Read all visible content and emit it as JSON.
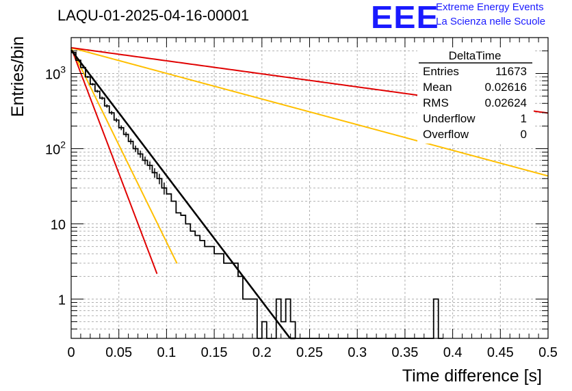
{
  "header": {
    "run_title": "LAQU-01-2025-04-16-00001",
    "logo_text": "EEE",
    "org_line1": "Extreme Energy Events",
    "org_line2": "La Scienza nelle Scuole"
  },
  "stats_box": {
    "name": "DeltaTime",
    "rows": [
      {
        "label": "Entries",
        "value": "11673"
      },
      {
        "label": "Mean",
        "value": "0.02616"
      },
      {
        "label": "RMS",
        "value": "0.02624"
      },
      {
        "label": "Underflow",
        "value": "1"
      },
      {
        "label": "Overflow",
        "value": "0"
      }
    ]
  },
  "colors": {
    "histogram": "#000000",
    "fit": "#000000",
    "red": "#e00000",
    "orange": "#ffbf00",
    "grid": "#b0b0b0"
  },
  "chart_data": {
    "type": "histogram",
    "title": "LAQU-01-2025-04-16-00001",
    "xlabel": "Time difference [s]",
    "ylabel": "Entries/bin",
    "xlim": [
      0,
      0.5
    ],
    "ylim": [
      0.3,
      3000
    ],
    "yscale": "log",
    "grid": true,
    "x_ticks": [
      "0",
      "0.05",
      "0.1",
      "0.15",
      "0.2",
      "0.25",
      "0.3",
      "0.35",
      "0.4",
      "0.45",
      "0.5"
    ],
    "y_ticks": [
      {
        "value": 1,
        "label": "1"
      },
      {
        "value": 10,
        "label": "10"
      },
      {
        "value": 100,
        "label": "10^2"
      },
      {
        "value": 1000,
        "label": "10^3"
      }
    ],
    "bin_width": 0.005,
    "bin_counts": [
      1900,
      1500,
      1200,
      900,
      720,
      580,
      470,
      370,
      300,
      240,
      190,
      155,
      125,
      100,
      85,
      70,
      60,
      48,
      40,
      30,
      25,
      20,
      14,
      13,
      10,
      8,
      7,
      6,
      5,
      5,
      4,
      4,
      3,
      3,
      3,
      2,
      1,
      1,
      1,
      0,
      0.5,
      0,
      0,
      1,
      0.5,
      1,
      0.5,
      0,
      0,
      0,
      0,
      0,
      0,
      0,
      0,
      0,
      0,
      0,
      0,
      0,
      0,
      0,
      0,
      0,
      0,
      0,
      0,
      0,
      0,
      0,
      0,
      0,
      0,
      0,
      0,
      0,
      1,
      0
    ],
    "fit": {
      "name": "main fit",
      "amplitude": 2050,
      "tau": 0.026,
      "x_end": 0.235
    },
    "reference_curves": [
      {
        "name": "red steep",
        "color": "red",
        "amplitude": 2200,
        "tau": 0.013,
        "x_end": 0.09
      },
      {
        "name": "orange steep",
        "color": "orange",
        "amplitude": 2200,
        "tau": 0.0168,
        "x_end": 0.111
      },
      {
        "name": "orange shallow",
        "color": "orange",
        "amplitude": 2200,
        "tau": 0.1273,
        "x_end": 0.5
      },
      {
        "name": "red shallow",
        "color": "red",
        "amplitude": 2200,
        "tau": 0.25,
        "x_end": 0.5
      }
    ]
  }
}
